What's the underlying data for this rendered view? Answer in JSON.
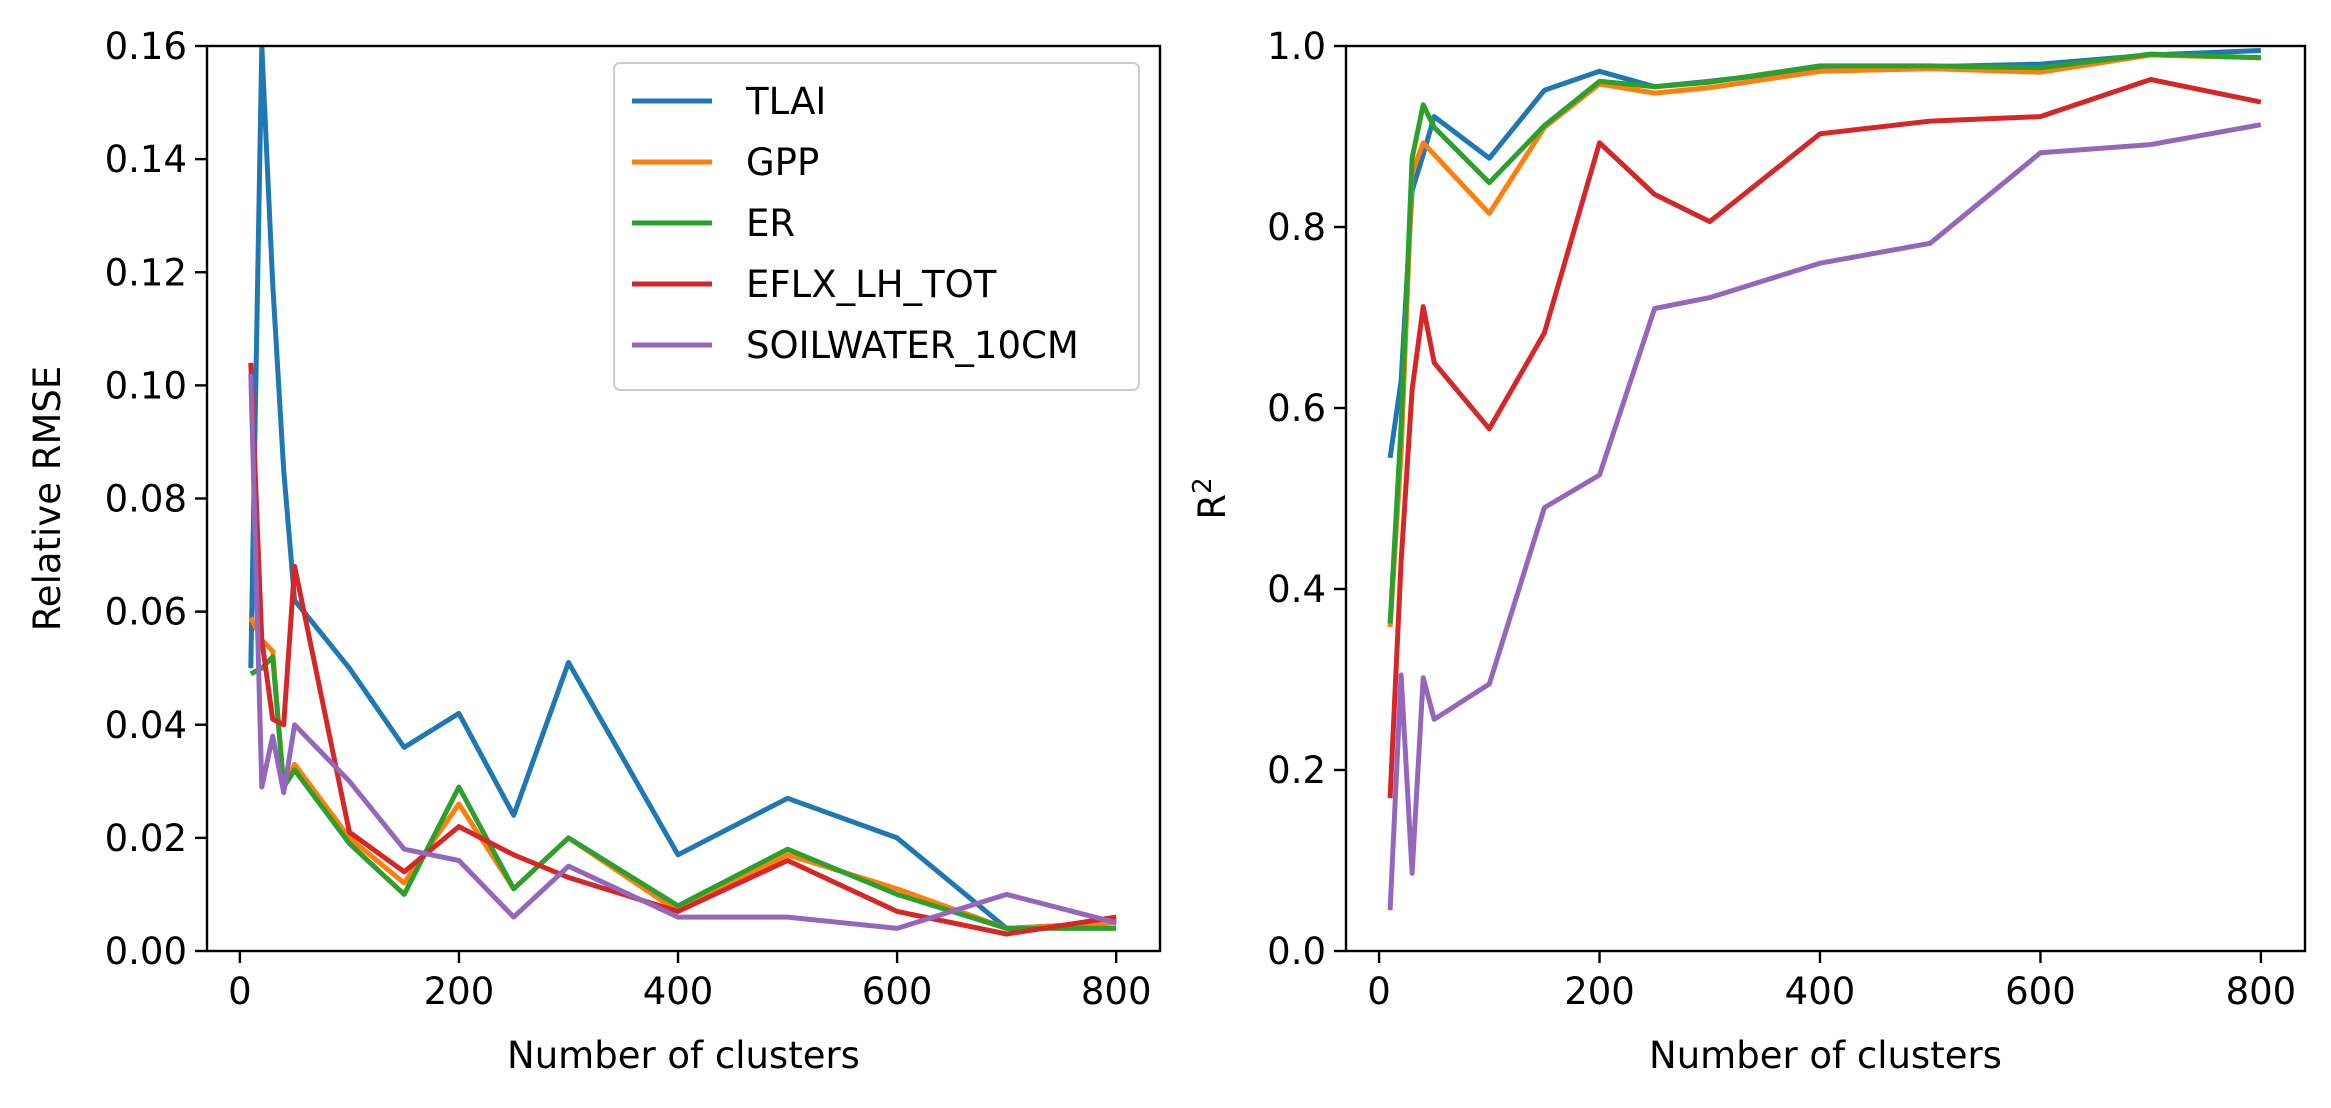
{
  "chart_data": [
    {
      "type": "line",
      "xlabel": "Number of clusters",
      "ylabel": "Relative RMSE",
      "xlim": [
        -30,
        840
      ],
      "ylim": [
        0,
        0.16
      ],
      "xticks": [
        0,
        200,
        400,
        600,
        800
      ],
      "yticks": [
        0.0,
        0.02,
        0.04,
        0.06,
        0.08,
        0.1,
        0.12,
        0.14,
        0.16
      ],
      "ytick_labels": [
        "0.00",
        "0.02",
        "0.04",
        "0.06",
        "0.08",
        "0.10",
        "0.12",
        "0.14",
        "0.16"
      ],
      "legend": "top-right",
      "x": [
        10,
        20,
        30,
        40,
        50,
        100,
        150,
        200,
        250,
        300,
        400,
        500,
        600,
        700,
        800
      ],
      "series": [
        {
          "name": "TLAI",
          "color": "#1f77b4",
          "values": [
            0.05,
            0.16,
            0.118,
            0.085,
            0.062,
            0.05,
            0.036,
            0.042,
            0.024,
            0.051,
            0.017,
            0.027,
            0.02,
            0.004,
            0.005
          ]
        },
        {
          "name": "GPP",
          "color": "#ff7f0e",
          "values": [
            0.059,
            0.055,
            0.053,
            0.029,
            0.033,
            0.02,
            0.012,
            0.026,
            0.011,
            0.02,
            0.007,
            0.017,
            0.011,
            0.004,
            0.005
          ]
        },
        {
          "name": "ER",
          "color": "#2ca02c",
          "values": [
            0.049,
            0.05,
            0.052,
            0.029,
            0.032,
            0.019,
            0.01,
            0.029,
            0.011,
            0.02,
            0.008,
            0.018,
            0.01,
            0.004,
            0.004
          ]
        },
        {
          "name": "EFLX_LH_TOT",
          "color": "#d62728",
          "values": [
            0.104,
            0.055,
            0.041,
            0.04,
            0.068,
            0.021,
            0.014,
            0.022,
            0.017,
            0.013,
            0.007,
            0.016,
            0.007,
            0.003,
            0.006
          ]
        },
        {
          "name": "SOILWATER_10CM",
          "color": "#9467bd",
          "values": [
            0.102,
            0.029,
            0.038,
            0.028,
            0.04,
            0.03,
            0.018,
            0.016,
            0.006,
            0.015,
            0.006,
            0.006,
            0.004,
            0.01,
            0.005
          ]
        }
      ]
    },
    {
      "type": "line",
      "xlabel": "Number of clusters",
      "ylabel": "R",
      "ylabel_sup": "2",
      "xlim": [
        -30,
        840
      ],
      "ylim": [
        0,
        1
      ],
      "xticks": [
        0,
        200,
        400,
        600,
        800
      ],
      "yticks": [
        0.0,
        0.2,
        0.4,
        0.6,
        0.8,
        1.0
      ],
      "ytick_labels": [
        "0.0",
        "0.2",
        "0.4",
        "0.6",
        "0.8",
        "1.0"
      ],
      "x": [
        10,
        20,
        30,
        40,
        50,
        100,
        150,
        200,
        250,
        300,
        400,
        500,
        600,
        700,
        800
      ],
      "series": [
        {
          "name": "TLAI",
          "color": "#1f77b4",
          "values": [
            0.545,
            0.63,
            0.84,
            0.88,
            0.922,
            0.876,
            0.951,
            0.972,
            0.955,
            0.961,
            0.975,
            0.977,
            0.98,
            0.99,
            0.995
          ]
        },
        {
          "name": "GPP",
          "color": "#ff7f0e",
          "values": [
            0.358,
            0.55,
            0.86,
            0.893,
            0.88,
            0.815,
            0.91,
            0.958,
            0.948,
            0.954,
            0.972,
            0.975,
            0.971,
            0.99,
            0.987
          ]
        },
        {
          "name": "ER",
          "color": "#2ca02c",
          "values": [
            0.362,
            0.58,
            0.876,
            0.935,
            0.91,
            0.849,
            0.912,
            0.961,
            0.955,
            0.96,
            0.978,
            0.978,
            0.976,
            0.991,
            0.987
          ]
        },
        {
          "name": "EFLX_LH_TOT",
          "color": "#d62728",
          "values": [
            0.169,
            0.43,
            0.62,
            0.712,
            0.65,
            0.577,
            0.683,
            0.893,
            0.836,
            0.806,
            0.903,
            0.917,
            0.922,
            0.963,
            0.938
          ]
        },
        {
          "name": "SOILWATER_10CM",
          "color": "#9467bd",
          "values": [
            0.045,
            0.305,
            0.086,
            0.302,
            0.256,
            0.295,
            0.49,
            0.526,
            0.71,
            0.722,
            0.76,
            0.782,
            0.882,
            0.891,
            0.913
          ]
        }
      ]
    }
  ]
}
